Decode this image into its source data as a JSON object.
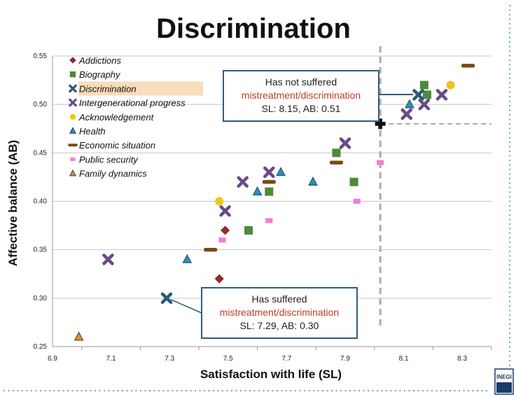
{
  "chart_data": {
    "type": "scatter",
    "title": "Discrimination",
    "xlabel": "Satisfaction with life (SL)",
    "ylabel": "Affective balance (AB)",
    "xlim": [
      6.9,
      8.4
    ],
    "ylim": [
      0.25,
      0.55
    ],
    "x_ticks": [
      "6.9",
      "7.1",
      "7.3",
      "7.5",
      "7.7",
      "7.9",
      "8.1",
      "8.3"
    ],
    "y_ticks": [
      "0.25",
      "0.30",
      "0.35",
      "0.40",
      "0.45",
      "0.50",
      "0.55"
    ],
    "grid": "horizontal",
    "legend_position": "top-left",
    "highlighted_series": "Discrimination",
    "reference_lines": {
      "x": 8.02,
      "y": 0.48
    },
    "series": [
      {
        "name": "Addictions",
        "marker": "diamond",
        "color": "#a0282d",
        "points": [
          [
            7.47,
            0.32
          ],
          [
            7.49,
            0.37
          ]
        ]
      },
      {
        "name": "Biography",
        "marker": "square",
        "color": "#4e8a3a",
        "points": [
          [
            7.57,
            0.37
          ],
          [
            7.64,
            0.41
          ],
          [
            7.87,
            0.45
          ],
          [
            7.93,
            0.42
          ],
          [
            8.17,
            0.52
          ],
          [
            8.18,
            0.51
          ]
        ]
      },
      {
        "name": "Discrimination",
        "marker": "x",
        "color": "#245c73",
        "points": [
          [
            7.29,
            0.3
          ],
          [
            8.15,
            0.51
          ]
        ]
      },
      {
        "name": "Intergenerational progress",
        "marker": "x",
        "color": "#6a4a86",
        "points": [
          [
            7.09,
            0.34
          ],
          [
            7.49,
            0.39
          ],
          [
            7.55,
            0.42
          ],
          [
            7.64,
            0.43
          ],
          [
            7.9,
            0.46
          ],
          [
            8.11,
            0.49
          ],
          [
            8.17,
            0.5
          ],
          [
            8.23,
            0.51
          ]
        ]
      },
      {
        "name": "Acknowledgement",
        "marker": "circle",
        "color": "#f0c419",
        "points": [
          [
            7.47,
            0.4
          ],
          [
            8.26,
            0.52
          ]
        ]
      },
      {
        "name": "Health",
        "marker": "triangle",
        "color": "#2b8fb8",
        "points": [
          [
            7.36,
            0.34
          ],
          [
            7.6,
            0.41
          ],
          [
            7.68,
            0.43
          ],
          [
            7.79,
            0.42
          ],
          [
            8.12,
            0.5
          ]
        ]
      },
      {
        "name": "Economic situation",
        "marker": "dash",
        "color": "#7a4a12",
        "points": [
          [
            7.44,
            0.35
          ],
          [
            7.64,
            0.42
          ],
          [
            7.87,
            0.44
          ],
          [
            8.32,
            0.54
          ]
        ]
      },
      {
        "name": "Public security",
        "marker": "small-square",
        "color": "#ee7fd8",
        "points": [
          [
            7.48,
            0.36
          ],
          [
            7.64,
            0.38
          ],
          [
            7.94,
            0.4
          ],
          [
            8.02,
            0.44
          ]
        ]
      },
      {
        "name": "Family dynamics",
        "marker": "triangle",
        "color": "#f08a1c",
        "points": [
          [
            6.99,
            0.26
          ]
        ]
      }
    ],
    "reference_point": {
      "marker": "plus",
      "color": "#111111",
      "x": 8.02,
      "y": 0.48
    },
    "annotations": [
      {
        "line1": "Has not suffered",
        "line2": "mistreatment/discrimination",
        "line3": "SL: 8.15, AB: 0.51",
        "target_x": 8.15,
        "target_y": 0.51
      },
      {
        "line1": "Has suffered",
        "line2": "mistreatment/discrimination",
        "line3": "SL: 7.29, AB: 0.30",
        "target_x": 7.29,
        "target_y": 0.3
      }
    ]
  },
  "logo": {
    "text": "INEGI"
  },
  "colors": {
    "callout_border": "#2f5d7a",
    "callout_red": "#c0392b",
    "legend_highlight": "#f9dcbc",
    "grid": "#c8c8c8",
    "reference_line": "#aaaaaa",
    "border_dots": "#4fa6c4"
  }
}
